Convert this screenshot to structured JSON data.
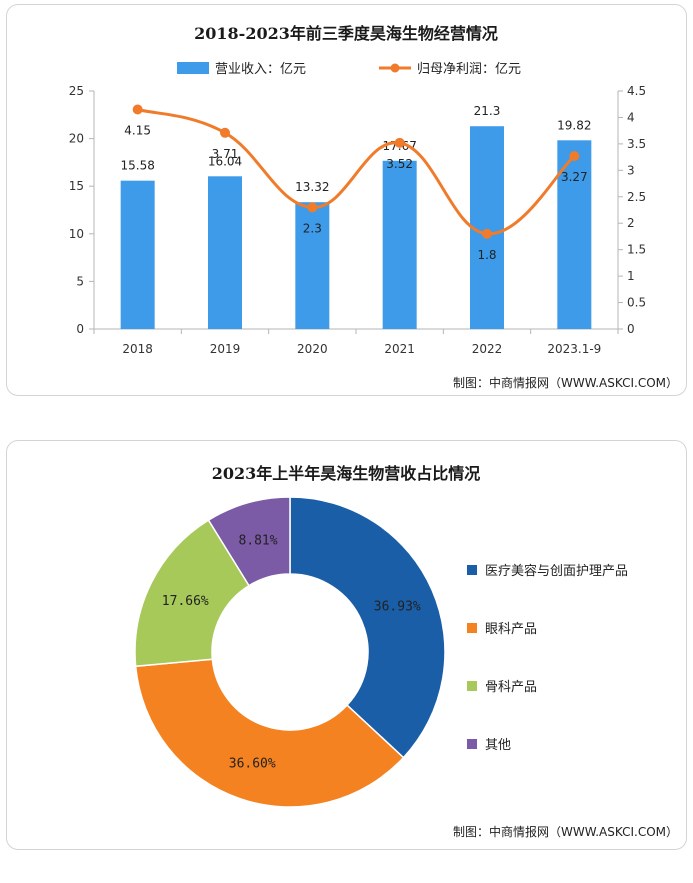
{
  "chart_data": [
    {
      "type": "bar",
      "title": "2018-2023年前三季度昊海生物经营情况",
      "categories": [
        "2018",
        "2019",
        "2020",
        "2021",
        "2022",
        "2023.1-9"
      ],
      "series": [
        {
          "name": "营业收入：亿元",
          "kind": "bar",
          "axis": "left",
          "color": "#3d9be9",
          "values": [
            15.58,
            16.04,
            13.32,
            17.67,
            21.3,
            19.82
          ],
          "labels": [
            "15.58",
            "16.04",
            "13.32",
            "17.67",
            "21.3",
            "19.82"
          ]
        },
        {
          "name": "归母净利润：亿元",
          "kind": "line",
          "axis": "right",
          "color": "#f07b2a",
          "values": [
            4.15,
            3.71,
            2.3,
            3.52,
            1.8,
            3.27
          ],
          "labels": [
            "4.15",
            "3.71",
            "2.3",
            "3.52",
            "1.8",
            "3.27"
          ]
        }
      ],
      "left_axis": {
        "min": 0,
        "max": 25,
        "ticks": [
          "0",
          "5",
          "10",
          "15",
          "20",
          "25"
        ]
      },
      "right_axis": {
        "min": 0,
        "max": 4.5,
        "ticks": [
          "0",
          "0.5",
          "1",
          "1.5",
          "2",
          "2.5",
          "3",
          "3.5",
          "4",
          "4.5"
        ]
      },
      "legend_position": "top",
      "grid": false,
      "source": "制图：中商情报网（WWW.ASKCI.COM）"
    },
    {
      "type": "pie",
      "subtype": "donut",
      "title": "2023年上半年昊海生物营收占比情况",
      "slices": [
        {
          "label": "医疗美容与创面护理产品",
          "value": 36.93,
          "text": "36.93%",
          "color": "#1a5ea8"
        },
        {
          "label": "眼科产品",
          "value": 36.6,
          "text": "36.60%",
          "color": "#f58220"
        },
        {
          "label": "骨科产品",
          "value": 17.66,
          "text": "17.66%",
          "color": "#a6c95a"
        },
        {
          "label": "其他",
          "value": 8.81,
          "text": "8.81%",
          "color": "#7b5aa6"
        }
      ],
      "legend_position": "right",
      "source": "制图：中商情报网（WWW.ASKCI.COM）"
    }
  ]
}
